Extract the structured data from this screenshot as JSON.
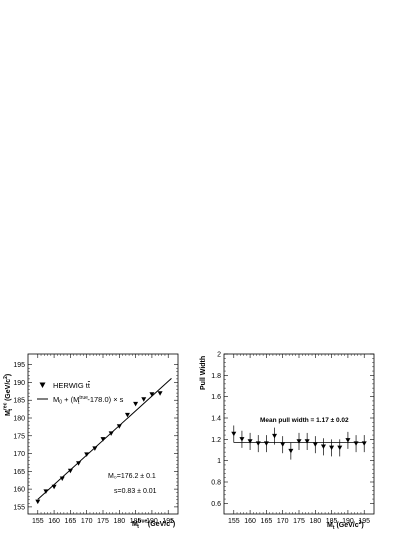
{
  "chart_data": [
    {
      "type": "scatter",
      "xlabel": "M_t^{true} (GeV/c^2)",
      "xlabel_main": "M",
      "xlabel_sub": "t",
      "xlabel_sup": "true",
      "xlabel_unit": " (GeV/c",
      "xlabel_unit_sup": "2",
      "xlabel_unit_close": ")",
      "ylabel": "M_t^{rec} (GeV/c^2)",
      "ylabel_main": "M",
      "ylabel_sub": "t",
      "ylabel_sup": "rec",
      "ylabel_unit": " (GeV/c",
      "ylabel_unit_sup": "2",
      "ylabel_unit_close": ")",
      "xlim": [
        152,
        198
      ],
      "ylim": [
        153,
        198
      ],
      "xticks": [
        155,
        160,
        165,
        170,
        175,
        180,
        185,
        190,
        195
      ],
      "yticks": [
        155,
        160,
        165,
        170,
        175,
        180,
        185,
        190,
        195
      ],
      "x": [
        155,
        157.5,
        160,
        162.5,
        165,
        167.5,
        170,
        172.5,
        175,
        177.5,
        180,
        182.5,
        185,
        187.5,
        190,
        192.5
      ],
      "y": [
        156.4,
        159.3,
        160.6,
        162.9,
        165.1,
        167.2,
        169.7,
        171.4,
        174.0,
        175.6,
        177.6,
        180.8,
        183.9,
        185.2,
        186.6,
        186.9
      ],
      "fit": {
        "m0": 176.2,
        "s": 0.83,
        "x_ref": 178.0,
        "x_range": [
          155,
          196
        ]
      },
      "legend": {
        "marker_label_prefix": "HERWIG t",
        "marker_label_bar": "t",
        "line_label_a": "M",
        "line_label_a_sub": "0",
        "line_label_b": " + (M",
        "line_label_b_sup": "true",
        "line_label_b_sub": "t",
        "line_label_c": "-178.0) × s"
      },
      "annotations": [
        "M₀=176.2 ± 0.1",
        "s=0.83 ± 0.01"
      ]
    },
    {
      "type": "scatter",
      "xlabel": "M_t (GeV/c^2)",
      "xlabel_main": "M",
      "xlabel_sub": "t",
      "xlabel_unit": " (GeV/c",
      "xlabel_unit_sup": "2",
      "xlabel_unit_close": ")",
      "ylabel": "Pull Width",
      "xlim": [
        152,
        198
      ],
      "ylim": [
        0.5,
        2.0
      ],
      "xticks": [
        155,
        160,
        165,
        170,
        175,
        180,
        185,
        190,
        195
      ],
      "yticks": [
        0.6,
        0.8,
        1.0,
        1.2,
        1.4,
        1.6,
        1.8,
        2.0
      ],
      "ytick_labels": [
        "0.6",
        "0.8",
        "1",
        "1.2",
        "1.4",
        "1.6",
        "1.8",
        "2"
      ],
      "x": [
        155,
        157.5,
        160,
        162.5,
        165,
        167.5,
        170,
        172.5,
        175,
        177.5,
        180,
        182.5,
        185,
        187.5,
        190,
        192.5,
        195
      ],
      "y": [
        1.25,
        1.2,
        1.18,
        1.16,
        1.16,
        1.23,
        1.15,
        1.09,
        1.18,
        1.18,
        1.15,
        1.13,
        1.12,
        1.12,
        1.19,
        1.16,
        1.16
      ],
      "yerr": [
        0.08,
        0.08,
        0.08,
        0.08,
        0.08,
        0.08,
        0.08,
        0.08,
        0.08,
        0.08,
        0.08,
        0.08,
        0.08,
        0.08,
        0.08,
        0.08,
        0.08
      ],
      "fit_line": 1.17,
      "annotation": "Mean pull width = 1.17 ± 0.02"
    }
  ]
}
